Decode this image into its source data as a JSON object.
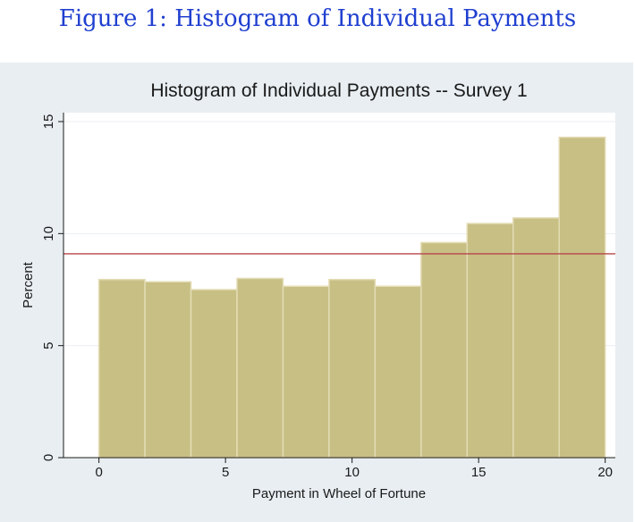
{
  "caption": "Figure 1: Histogram of Individual Payments",
  "colors": {
    "bar_fill": "#c8bf85",
    "bar_edge": "#e3dcb4",
    "ref_line": "#b8464b",
    "grid": "#e9eef2",
    "plot_bg": "#ffffff",
    "panel_bg": "#e8eef2",
    "caption": "#1f3fd0"
  },
  "chart_data": {
    "type": "bar",
    "title": "Histogram of Individual Payments -- Survey 1",
    "xlabel": "Payment in Wheel of Fortune",
    "ylabel": "Percent",
    "xlim": [
      -1.4,
      20.4
    ],
    "ylim": [
      0,
      15.4
    ],
    "xticks": [
      0,
      5,
      10,
      15,
      20
    ],
    "xtick_labels": [
      "0",
      "5",
      "10",
      "15",
      "20"
    ],
    "yticks": [
      0,
      5,
      10,
      15
    ],
    "ytick_labels": [
      "0",
      "5",
      "10",
      "15"
    ],
    "grid": true,
    "bin_edges": [
      0,
      1.818,
      3.636,
      5.455,
      7.273,
      9.091,
      10.909,
      12.727,
      14.545,
      16.364,
      18.182,
      20
    ],
    "values": [
      7.95,
      7.85,
      7.5,
      8.0,
      7.65,
      7.95,
      7.65,
      9.6,
      10.45,
      10.7,
      14.3
    ],
    "reference_line": 9.1
  }
}
